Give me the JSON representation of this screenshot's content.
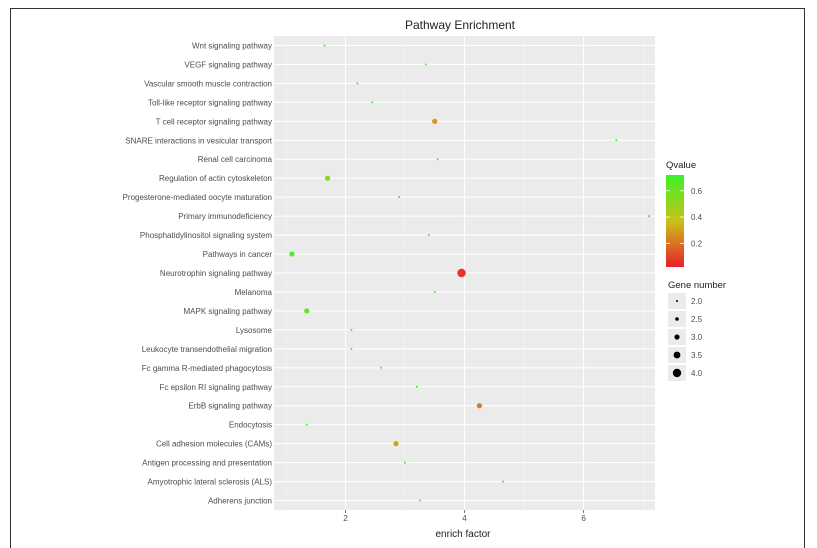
{
  "chart_data": {
    "type": "scatter",
    "title": "Pathway Enrichment",
    "xlabel": "enrich factor",
    "ylabel": "",
    "xlim": [
      0.8,
      7.2
    ],
    "x_ticks": [
      "2",
      "4",
      "6"
    ],
    "x_tick_values": [
      2,
      4,
      6
    ],
    "grid": true,
    "categories": [
      "Wnt signaling pathway",
      "VEGF signaling pathway",
      "Vascular smooth muscle contraction",
      "Toll-like receptor signaling pathway",
      "T cell receptor signaling pathway",
      "SNARE interactions in vesicular transport",
      "Renal cell carcinoma",
      "Regulation of actin cytoskeleton",
      "Progesterone-mediated oocyte maturation",
      "Primary immunodeficiency",
      "Phosphatidylinositol signaling system",
      "Pathways in cancer",
      "Neurotrophin signaling pathway",
      "Melanoma",
      "MAPK signaling pathway",
      "Lysosome",
      "Leukocyte transendothelial migration",
      "Fc gamma R-mediated phagocytosis",
      "Fc epsilon RI signaling pathway",
      "ErbB signaling pathway",
      "Endocytosis",
      "Cell adhesion molecules (CAMs)",
      "Antigen processing and presentation",
      "Amyotrophic lateral sclerosis (ALS)",
      "Adherens junction"
    ],
    "points": [
      {
        "x": 1.65,
        "qvalue": 0.7,
        "genes": 2
      },
      {
        "x": 3.35,
        "qvalue": 0.72,
        "genes": 2
      },
      {
        "x": 2.2,
        "qvalue": 0.72,
        "genes": 2
      },
      {
        "x": 2.45,
        "qvalue": 0.72,
        "genes": 2
      },
      {
        "x": 3.5,
        "qvalue": 0.28,
        "genes": 3
      },
      {
        "x": 6.55,
        "qvalue": 0.72,
        "genes": 2
      },
      {
        "x": 3.55,
        "qvalue": 0.72,
        "genes": 2
      },
      {
        "x": 1.7,
        "qvalue": 0.55,
        "genes": 3
      },
      {
        "x": 2.9,
        "qvalue": 0.72,
        "genes": 2
      },
      {
        "x": 7.1,
        "qvalue": 0.72,
        "genes": 2
      },
      {
        "x": 3.4,
        "qvalue": 0.72,
        "genes": 2
      },
      {
        "x": 1.1,
        "qvalue": 0.68,
        "genes": 3
      },
      {
        "x": 3.95,
        "qvalue": 0.06,
        "genes": 4
      },
      {
        "x": 3.5,
        "qvalue": 0.72,
        "genes": 2
      },
      {
        "x": 1.35,
        "qvalue": 0.62,
        "genes": 3
      },
      {
        "x": 2.1,
        "qvalue": 0.72,
        "genes": 2
      },
      {
        "x": 2.1,
        "qvalue": 0.72,
        "genes": 2
      },
      {
        "x": 2.6,
        "qvalue": 0.72,
        "genes": 2
      },
      {
        "x": 3.2,
        "qvalue": 0.72,
        "genes": 2
      },
      {
        "x": 4.25,
        "qvalue": 0.22,
        "genes": 3
      },
      {
        "x": 1.35,
        "qvalue": 0.72,
        "genes": 2
      },
      {
        "x": 2.85,
        "qvalue": 0.3,
        "genes": 3
      },
      {
        "x": 3.0,
        "qvalue": 0.72,
        "genes": 2
      },
      {
        "x": 4.65,
        "qvalue": 0.72,
        "genes": 2
      },
      {
        "x": 3.25,
        "qvalue": 0.72,
        "genes": 2
      }
    ],
    "legend_color": {
      "title": "Qvalue",
      "ticks": [
        "0.6",
        "0.4",
        "0.2"
      ],
      "tick_values": [
        0.6,
        0.4,
        0.2
      ],
      "range": [
        0.02,
        0.72
      ],
      "low_color": "#e8202a",
      "mid_color": "#c9c21a",
      "high_color": "#3bf225"
    },
    "legend_size": {
      "title": "Gene number",
      "labels": [
        "2.0",
        "2.5",
        "3.0",
        "3.5",
        "4.0"
      ],
      "values": [
        2.0,
        2.5,
        3.0,
        3.5,
        4.0
      ]
    },
    "colors": {
      "panel_bg": "#ebebeb",
      "grid_major": "#ffffff",
      "text": "#4d4d4d"
    }
  }
}
